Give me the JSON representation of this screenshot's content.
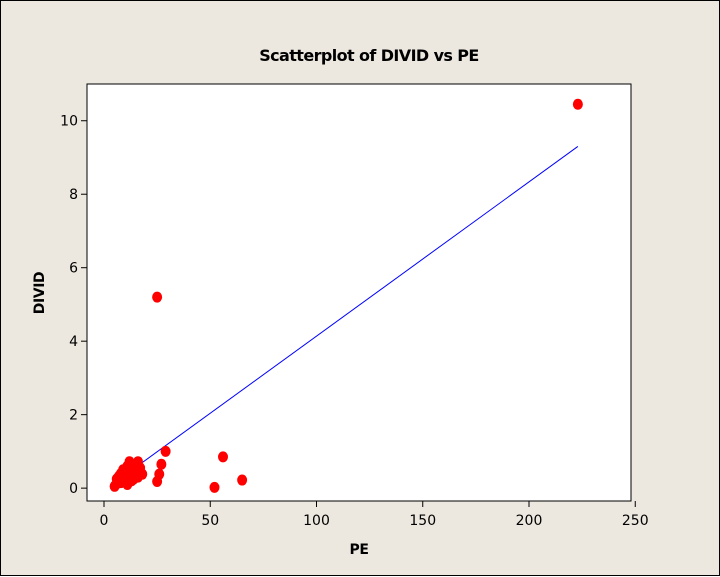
{
  "chart_data": {
    "type": "scatter",
    "title": "Scatterplot of DIVID vs PE",
    "xlabel": "PE",
    "ylabel": "DIVID",
    "xlim": [
      -8,
      248
    ],
    "ylim": [
      -0.35,
      11.0
    ],
    "x_ticks": [
      0,
      50,
      100,
      150,
      200,
      250
    ],
    "y_ticks": [
      0,
      2,
      4,
      6,
      8,
      10
    ],
    "grid": false,
    "colors": {
      "points": "#ff0000",
      "fit_line": "#0000ff",
      "background": "#ede8df",
      "plot_area": "#ffffff"
    },
    "series": [
      {
        "points": [
          [
            223,
            10.45
          ],
          [
            25,
            5.2
          ],
          [
            29,
            1.0
          ],
          [
            56,
            0.85
          ],
          [
            27,
            0.65
          ],
          [
            26,
            0.38
          ],
          [
            25,
            0.18
          ],
          [
            52,
            0.02
          ],
          [
            65,
            0.22
          ],
          [
            5,
            0.05
          ],
          [
            6,
            0.12
          ],
          [
            6,
            0.25
          ],
          [
            7,
            0.18
          ],
          [
            7,
            0.32
          ],
          [
            8,
            0.15
          ],
          [
            8,
            0.4
          ],
          [
            9,
            0.28
          ],
          [
            9,
            0.5
          ],
          [
            10,
            0.2
          ],
          [
            10,
            0.35
          ],
          [
            11,
            0.45
          ],
          [
            11,
            0.6
          ],
          [
            12,
            0.3
          ],
          [
            12,
            0.72
          ],
          [
            13,
            0.4
          ],
          [
            13,
            0.55
          ],
          [
            14,
            0.25
          ],
          [
            14,
            0.48
          ],
          [
            15,
            0.35
          ],
          [
            15,
            0.65
          ],
          [
            16,
            0.72
          ],
          [
            16,
            0.3
          ],
          [
            17,
            0.45
          ],
          [
            17,
            0.55
          ],
          [
            18,
            0.38
          ],
          [
            13,
            0.2
          ],
          [
            11,
            0.1
          ]
        ]
      }
    ],
    "fit_line": {
      "x": [
        5,
        223
      ],
      "y": [
        0.15,
        9.3
      ]
    }
  }
}
